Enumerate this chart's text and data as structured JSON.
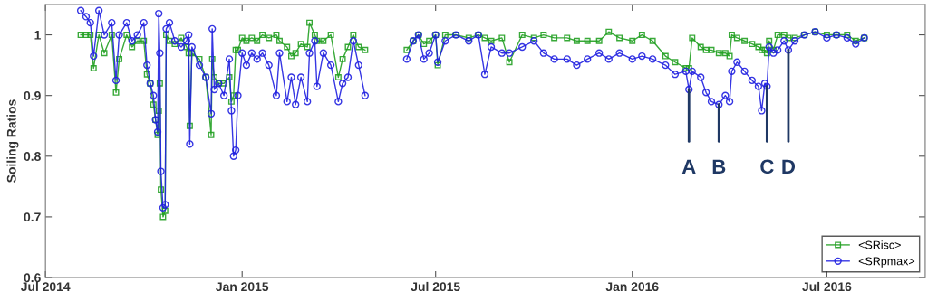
{
  "chart_data": {
    "type": "line",
    "ylabel": "Soiling Ratios",
    "x": [
      "2014-08-03",
      "2014-08-08",
      "2014-08-12",
      "2014-08-15",
      "2014-08-20",
      "2014-08-25",
      "2014-09-01",
      "2014-09-05",
      "2014-09-08",
      "2014-09-15",
      "2014-09-20",
      "2014-09-25",
      "2014-10-01",
      "2014-10-04",
      "2014-10-07",
      "2014-10-10",
      "2014-10-12",
      "2014-10-14",
      "2014-10-15",
      "2014-10-16",
      "2014-10-17",
      "2014-10-19",
      "2014-10-21",
      "2014-10-22",
      "2014-10-25",
      "2014-10-30",
      "2014-11-05",
      "2014-11-10",
      "2014-11-12",
      "2014-11-13",
      "2014-11-15",
      "2014-11-22",
      "2014-11-28",
      "2014-12-03",
      "2014-12-04",
      "2014-12-06",
      "2014-12-10",
      "2014-12-15",
      "2014-12-20",
      "2014-12-22",
      "2014-12-24",
      "2014-12-26",
      "2014-12-28",
      "2015-01-01",
      "2015-01-05",
      "2015-01-10",
      "2015-01-15",
      "2015-01-20",
      "2015-01-26",
      "2015-02-02",
      "2015-02-05",
      "2015-02-12",
      "2015-02-16",
      "2015-02-20",
      "2015-02-25",
      "2015-03-03",
      "2015-03-05",
      "2015-03-10",
      "2015-03-12",
      "2015-03-18",
      "2015-03-25",
      "2015-04-01",
      "2015-04-05",
      "2015-04-10",
      "2015-04-15",
      "2015-04-20",
      "2015-04-26",
      "2015-05-15",
      "2015-06-04",
      "2015-06-10",
      "2015-06-15",
      "2015-06-20",
      "2015-06-25",
      "2015-07-01",
      "2015-07-03",
      "2015-07-10",
      "2015-07-20",
      "2015-08-01",
      "2015-08-10",
      "2015-08-16",
      "2015-08-22",
      "2015-09-01",
      "2015-09-08",
      "2015-09-20",
      "2015-10-01",
      "2015-10-10",
      "2015-10-20",
      "2015-11-01",
      "2015-11-10",
      "2015-11-20",
      "2015-12-01",
      "2015-12-10",
      "2015-12-20",
      "2016-01-01",
      "2016-01-10",
      "2016-01-20",
      "2016-02-01",
      "2016-02-10",
      "2016-02-20",
      "2016-02-23",
      "2016-02-26",
      "2016-03-05",
      "2016-03-10",
      "2016-03-15",
      "2016-03-22",
      "2016-03-28",
      "2016-04-01",
      "2016-04-03",
      "2016-04-08",
      "2016-04-15",
      "2016-04-22",
      "2016-04-28",
      "2016-05-01",
      "2016-05-04",
      "2016-05-06",
      "2016-05-08",
      "2016-05-12",
      "2016-05-16",
      "2016-05-22",
      "2016-05-26",
      "2016-06-01",
      "2016-06-10",
      "2016-06-20",
      "2016-07-01",
      "2016-07-10",
      "2016-07-20",
      "2016-07-28",
      "2016-08-05"
    ],
    "series": [
      {
        "name": "<SRisc>",
        "color": "#22a022",
        "marker": "square",
        "values": [
          1.0,
          1.0,
          1.0,
          0.945,
          1.0,
          0.97,
          1.0,
          0.905,
          0.96,
          1.0,
          0.98,
          0.99,
          0.99,
          0.935,
          0.92,
          0.885,
          0.86,
          0.835,
          0.875,
          0.92,
          0.745,
          0.7,
          0.71,
          1.0,
          0.99,
          0.985,
          0.995,
          0.98,
          0.97,
          0.85,
          0.97,
          0.96,
          0.93,
          0.835,
          0.96,
          0.93,
          0.92,
          0.92,
          0.93,
          0.89,
          0.9,
          0.975,
          0.975,
          0.995,
          0.99,
          0.995,
          0.99,
          1.0,
          0.995,
          1.0,
          0.99,
          0.98,
          0.965,
          0.97,
          0.985,
          0.98,
          1.02,
          1.0,
          0.99,
          0.99,
          1.0,
          0.93,
          0.96,
          0.98,
          1.0,
          0.98,
          0.975,
          null,
          0.975,
          0.99,
          1.0,
          0.985,
          0.99,
          1.0,
          0.95,
          1.0,
          1.0,
          0.995,
          1.0,
          0.995,
          0.99,
          0.995,
          0.955,
          1.0,
          0.995,
          1.0,
          0.995,
          0.995,
          0.99,
          0.99,
          0.99,
          1.005,
          0.995,
          0.99,
          1.0,
          0.99,
          0.965,
          0.955,
          0.945,
          0.945,
          0.995,
          0.98,
          0.975,
          0.975,
          0.97,
          0.97,
          0.965,
          1.0,
          0.995,
          0.99,
          0.985,
          0.98,
          0.975,
          0.975,
          0.97,
          0.99,
          0.975,
          1.0,
          1.0,
          0.995,
          0.995,
          1.0,
          1.005,
          1.0,
          1.0,
          1.0,
          0.99,
          0.995
        ]
      },
      {
        "name": "<SRpmax>",
        "color": "#2020e0",
        "marker": "circle",
        "values": [
          1.04,
          1.03,
          1.02,
          0.965,
          1.04,
          1.0,
          1.02,
          0.925,
          1.0,
          1.02,
          0.99,
          1.0,
          1.02,
          0.95,
          0.92,
          0.9,
          0.86,
          0.84,
          1.035,
          0.97,
          0.775,
          0.715,
          0.72,
          1.01,
          1.02,
          0.99,
          0.98,
          0.99,
          1.0,
          0.82,
          0.98,
          0.95,
          0.93,
          0.87,
          1.01,
          0.91,
          0.92,
          0.9,
          0.96,
          0.875,
          0.8,
          0.81,
          0.9,
          0.97,
          0.95,
          0.97,
          0.96,
          0.97,
          0.95,
          0.9,
          0.97,
          0.89,
          0.93,
          0.885,
          0.93,
          0.89,
          0.97,
          0.99,
          0.915,
          0.97,
          0.95,
          0.89,
          0.92,
          0.93,
          0.99,
          0.95,
          0.9,
          null,
          0.96,
          0.99,
          1.0,
          0.96,
          0.97,
          1.0,
          0.955,
          0.99,
          1.0,
          0.99,
          1.0,
          0.935,
          0.98,
          0.97,
          0.97,
          0.98,
          0.99,
          0.97,
          0.96,
          0.96,
          0.95,
          0.96,
          0.97,
          0.96,
          0.97,
          0.96,
          0.965,
          0.96,
          0.95,
          0.935,
          0.94,
          0.91,
          0.94,
          0.93,
          0.905,
          0.89,
          0.885,
          0.9,
          0.89,
          0.94,
          0.955,
          0.94,
          0.925,
          0.915,
          0.875,
          0.92,
          0.915,
          0.98,
          0.97,
          0.975,
          0.99,
          0.975,
          0.99,
          1.0,
          1.005,
          0.995,
          1.0,
          0.995,
          0.985,
          0.995
        ]
      }
    ],
    "xlim": [
      "2014-07-01",
      "2016-10-01"
    ],
    "xticks": [
      {
        "value": "2014-07-01",
        "label": "Jul 2014"
      },
      {
        "value": "2015-01-01",
        "label": "Jan 2015"
      },
      {
        "value": "2015-07-01",
        "label": "Jul 2015"
      },
      {
        "value": "2016-01-01",
        "label": "Jan 2016"
      },
      {
        "value": "2016-07-01",
        "label": "Jul 2016"
      }
    ],
    "ylim": [
      0.6,
      1.05
    ],
    "yticks": [
      0.6,
      0.7,
      0.8,
      0.9,
      1
    ],
    "annotations": [
      {
        "text": "A",
        "x": "2016-02-23",
        "y": 0.91
      },
      {
        "text": "B",
        "x": "2016-03-22",
        "y": 0.885
      },
      {
        "text": "C",
        "x": "2016-05-06",
        "y": 0.915
      },
      {
        "text": "D",
        "x": "2016-05-26",
        "y": 0.975
      }
    ],
    "legend": "bottom right",
    "line_style": "solid",
    "grid": false
  }
}
